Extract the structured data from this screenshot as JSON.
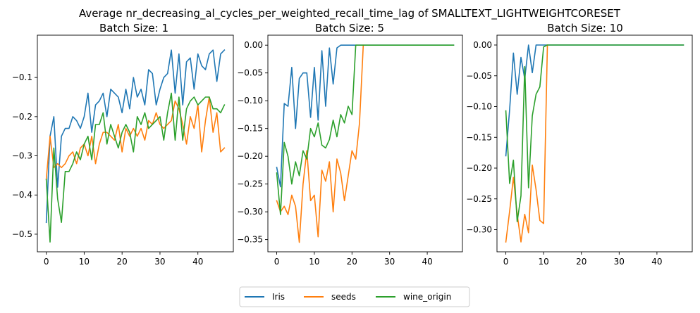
{
  "figure": {
    "title": "Average nr_decreasing_al_cycles_per_weighted_recall_time_lag of SMALLTEXT_LIGHTWEIGHTCORESET"
  },
  "legend": {
    "placement": "bottom-center",
    "entries": [
      "Iris",
      "seeds",
      "wine_origin"
    ]
  },
  "colors": {
    "Iris": "#1f77b4",
    "seeds": "#ff7f0e",
    "wine_origin": "#2ca02c"
  },
  "chart_data": [
    {
      "type": "line",
      "title": "Batch Size: 1",
      "xlabel": "",
      "ylabel": "",
      "xlim": [
        -2.35,
        49.35
      ],
      "ylim": [
        -0.545,
        0.008
      ],
      "xticks": [
        0,
        10,
        20,
        30,
        40
      ],
      "yticks": [
        -0.5,
        -0.4,
        -0.3,
        -0.2,
        -0.1
      ],
      "yticklabels": [
        "−0.5",
        "−0.4",
        "−0.3",
        "−0.2",
        "−0.1"
      ],
      "grid": false,
      "series": [
        {
          "name": "Iris",
          "x": [
            0,
            1,
            2,
            3,
            4,
            5,
            6,
            7,
            8,
            9,
            10,
            11,
            12,
            13,
            14,
            15,
            16,
            17,
            18,
            19,
            20,
            21,
            22,
            23,
            24,
            25,
            26,
            27,
            28,
            29,
            30,
            31,
            32,
            33,
            34,
            35,
            36,
            37,
            38,
            39,
            40,
            41,
            42,
            43,
            44,
            45,
            46,
            47
          ],
          "values": [
            -0.47,
            -0.25,
            -0.2,
            -0.38,
            -0.25,
            -0.23,
            -0.23,
            -0.2,
            -0.21,
            -0.23,
            -0.2,
            -0.14,
            -0.24,
            -0.17,
            -0.16,
            -0.14,
            -0.2,
            -0.13,
            -0.14,
            -0.15,
            -0.19,
            -0.13,
            -0.18,
            -0.1,
            -0.15,
            -0.13,
            -0.17,
            -0.08,
            -0.09,
            -0.17,
            -0.13,
            -0.1,
            -0.09,
            -0.03,
            -0.14,
            -0.04,
            -0.17,
            -0.06,
            -0.05,
            -0.13,
            -0.04,
            -0.07,
            -0.08,
            -0.04,
            -0.03,
            -0.11,
            -0.04,
            -0.03
          ]
        },
        {
          "name": "seeds",
          "x": [
            0,
            1,
            2,
            3,
            4,
            5,
            6,
            7,
            8,
            9,
            10,
            11,
            12,
            13,
            14,
            15,
            16,
            17,
            18,
            19,
            20,
            21,
            22,
            23,
            24,
            25,
            26,
            27,
            28,
            29,
            30,
            31,
            32,
            33,
            34,
            35,
            36,
            37,
            38,
            39,
            40,
            41,
            42,
            43,
            44,
            45,
            46,
            47
          ],
          "values": [
            -0.36,
            -0.25,
            -0.33,
            -0.32,
            -0.33,
            -0.32,
            -0.3,
            -0.29,
            -0.32,
            -0.28,
            -0.27,
            -0.3,
            -0.25,
            -0.32,
            -0.27,
            -0.24,
            -0.24,
            -0.25,
            -0.26,
            -0.22,
            -0.29,
            -0.23,
            -0.25,
            -0.23,
            -0.25,
            -0.23,
            -0.26,
            -0.21,
            -0.22,
            -0.19,
            -0.22,
            -0.23,
            -0.22,
            -0.21,
            -0.16,
            -0.18,
            -0.22,
            -0.27,
            -0.2,
            -0.23,
            -0.17,
            -0.29,
            -0.21,
            -0.15,
            -0.24,
            -0.19,
            -0.29,
            -0.28
          ]
        },
        {
          "name": "wine_origin",
          "x": [
            0,
            1,
            2,
            3,
            4,
            5,
            6,
            7,
            8,
            9,
            10,
            11,
            12,
            13,
            14,
            15,
            16,
            17,
            18,
            19,
            20,
            21,
            22,
            23,
            24,
            25,
            26,
            27,
            28,
            29,
            30,
            31,
            32,
            33,
            34,
            35,
            36,
            37,
            38,
            39,
            40,
            41,
            42,
            43,
            44,
            45,
            46,
            47
          ],
          "values": [
            -0.36,
            -0.52,
            -0.28,
            -0.41,
            -0.47,
            -0.34,
            -0.34,
            -0.32,
            -0.29,
            -0.31,
            -0.27,
            -0.25,
            -0.31,
            -0.22,
            -0.22,
            -0.19,
            -0.27,
            -0.22,
            -0.25,
            -0.28,
            -0.24,
            -0.22,
            -0.24,
            -0.29,
            -0.2,
            -0.22,
            -0.19,
            -0.23,
            -0.22,
            -0.21,
            -0.2,
            -0.26,
            -0.19,
            -0.14,
            -0.26,
            -0.15,
            -0.26,
            -0.18,
            -0.16,
            -0.15,
            -0.17,
            -0.16,
            -0.15,
            -0.15,
            -0.18,
            -0.18,
            -0.19,
            -0.17
          ]
        }
      ]
    },
    {
      "type": "line",
      "title": "Batch Size: 5",
      "xlabel": "",
      "ylabel": "",
      "xlim": [
        -2.35,
        49.35
      ],
      "ylim": [
        -0.372,
        0.018
      ],
      "xticks": [
        0,
        10,
        20,
        30,
        40
      ],
      "yticks": [
        0.0,
        -0.05,
        -0.1,
        -0.15,
        -0.2,
        -0.25,
        -0.3,
        -0.35
      ],
      "yticklabels": [
        "0.00",
        "−0.05",
        "−0.10",
        "−0.15",
        "−0.20",
        "−0.25",
        "−0.30",
        "−0.35"
      ],
      "grid": false,
      "series": [
        {
          "name": "Iris",
          "x": [
            0,
            1,
            2,
            3,
            4,
            5,
            6,
            7,
            8,
            9,
            10,
            11,
            12,
            13,
            14,
            15,
            16,
            17,
            18,
            19,
            20,
            21,
            22,
            23,
            24,
            25,
            26,
            27,
            28,
            29,
            30,
            31,
            32,
            33,
            34,
            35,
            36,
            37,
            38,
            39,
            40,
            41,
            42,
            43,
            44,
            45,
            46,
            47
          ],
          "values": [
            -0.22,
            -0.255,
            -0.105,
            -0.11,
            -0.04,
            -0.15,
            -0.06,
            -0.05,
            -0.05,
            -0.13,
            -0.04,
            -0.135,
            -0.01,
            -0.11,
            -0.005,
            -0.07,
            -0.005,
            0.0,
            0.0,
            0.0,
            0.0,
            0.0,
            0.0,
            0.0,
            0.0,
            0.0,
            0.0,
            0.0,
            0.0,
            0.0,
            0.0,
            0.0,
            0.0,
            0.0,
            0.0,
            0.0,
            0.0,
            0.0,
            0.0,
            0.0,
            0.0,
            0.0,
            0.0,
            0.0,
            0.0,
            0.0,
            0.0,
            0.0
          ]
        },
        {
          "name": "seeds",
          "x": [
            0,
            1,
            2,
            3,
            4,
            5,
            6,
            7,
            8,
            9,
            10,
            11,
            12,
            13,
            14,
            15,
            16,
            17,
            18,
            19,
            20,
            21,
            22,
            23
          ],
          "values": [
            -0.28,
            -0.3,
            -0.29,
            -0.305,
            -0.27,
            -0.29,
            -0.355,
            -0.25,
            -0.19,
            -0.28,
            -0.27,
            -0.345,
            -0.225,
            -0.245,
            -0.21,
            -0.3,
            -0.205,
            -0.23,
            -0.28,
            -0.235,
            -0.19,
            -0.205,
            -0.14,
            0.0
          ]
        },
        {
          "name": "wine_origin",
          "x": [
            0,
            1,
            2,
            3,
            4,
            5,
            6,
            7,
            8,
            9,
            10,
            11,
            12,
            13,
            14,
            15,
            16,
            17,
            18,
            19,
            20,
            21,
            22,
            23,
            24,
            25,
            26,
            27,
            28,
            29,
            30,
            31,
            32,
            33,
            34,
            35,
            36,
            37,
            38,
            39,
            40,
            41,
            42,
            43,
            44,
            45,
            46,
            47
          ],
          "values": [
            -0.23,
            -0.305,
            -0.175,
            -0.2,
            -0.25,
            -0.21,
            -0.235,
            -0.19,
            -0.205,
            -0.15,
            -0.165,
            -0.14,
            -0.18,
            -0.185,
            -0.17,
            -0.135,
            -0.165,
            -0.125,
            -0.14,
            -0.11,
            -0.125,
            0.0,
            0.0,
            0.0,
            0.0,
            0.0,
            0.0,
            0.0,
            0.0,
            0.0,
            0.0,
            0.0,
            0.0,
            0.0,
            0.0,
            0.0,
            0.0,
            0.0,
            0.0,
            0.0,
            0.0,
            0.0,
            0.0,
            0.0,
            0.0,
            0.0,
            0.0,
            0.0
          ]
        }
      ]
    },
    {
      "type": "line",
      "title": "Batch Size: 10",
      "xlabel": "",
      "ylabel": "",
      "xlim": [
        -2.35,
        49.35
      ],
      "ylim": [
        -0.336,
        0.016
      ],
      "xticks": [
        0,
        10,
        20,
        30,
        40
      ],
      "yticks": [
        0.0,
        -0.05,
        -0.1,
        -0.15,
        -0.2,
        -0.25,
        -0.3
      ],
      "yticklabels": [
        "0.00",
        "−0.05",
        "−0.10",
        "−0.15",
        "−0.20",
        "−0.25",
        "−0.30"
      ],
      "grid": false,
      "series": [
        {
          "name": "Iris",
          "x": [
            0,
            1,
            2,
            3,
            4,
            5,
            6,
            7,
            8,
            9,
            10,
            11,
            12,
            13,
            14,
            15,
            16,
            17,
            18,
            19,
            20,
            21,
            22,
            23,
            24,
            25,
            26,
            27,
            28,
            29,
            30,
            31,
            32,
            33,
            34,
            35,
            36,
            37,
            38,
            39,
            40,
            41,
            42,
            43,
            44,
            45,
            46,
            47
          ],
          "values": [
            -0.18,
            -0.105,
            -0.013,
            -0.08,
            -0.02,
            -0.055,
            0.0,
            -0.045,
            0.0,
            0.0,
            0.0,
            0.0,
            0.0,
            0.0,
            0.0,
            0.0,
            0.0,
            0.0,
            0.0,
            0.0,
            0.0,
            0.0,
            0.0,
            0.0,
            0.0,
            0.0,
            0.0,
            0.0,
            0.0,
            0.0,
            0.0,
            0.0,
            0.0,
            0.0,
            0.0,
            0.0,
            0.0,
            0.0,
            0.0,
            0.0,
            0.0,
            0.0,
            0.0,
            0.0,
            0.0,
            0.0,
            0.0,
            0.0
          ]
        },
        {
          "name": "seeds",
          "x": [
            0,
            1,
            2,
            3,
            4,
            5,
            6,
            7,
            8,
            9,
            10,
            11
          ],
          "values": [
            -0.32,
            -0.27,
            -0.215,
            -0.275,
            -0.32,
            -0.275,
            -0.305,
            -0.195,
            -0.235,
            -0.285,
            -0.29,
            0.0
          ]
        },
        {
          "name": "wine_origin",
          "x": [
            0,
            1,
            2,
            3,
            4,
            5,
            6,
            7,
            8,
            9,
            10,
            11,
            12,
            13,
            14,
            15,
            16,
            17,
            18,
            19,
            20,
            21,
            22,
            23,
            24,
            25,
            26,
            27,
            28,
            29,
            30,
            31,
            32,
            33,
            34,
            35,
            36,
            37,
            38,
            39,
            40,
            41,
            42,
            43,
            44,
            45,
            46,
            47
          ],
          "values": [
            -0.107,
            -0.225,
            -0.187,
            -0.287,
            -0.245,
            -0.035,
            -0.232,
            -0.115,
            -0.08,
            -0.068,
            -0.003,
            0.0,
            0.0,
            0.0,
            0.0,
            0.0,
            0.0,
            0.0,
            0.0,
            0.0,
            0.0,
            0.0,
            0.0,
            0.0,
            0.0,
            0.0,
            0.0,
            0.0,
            0.0,
            0.0,
            0.0,
            0.0,
            0.0,
            0.0,
            0.0,
            0.0,
            0.0,
            0.0,
            0.0,
            0.0,
            0.0,
            0.0,
            0.0,
            0.0,
            0.0,
            0.0,
            0.0,
            0.0
          ]
        }
      ]
    }
  ]
}
